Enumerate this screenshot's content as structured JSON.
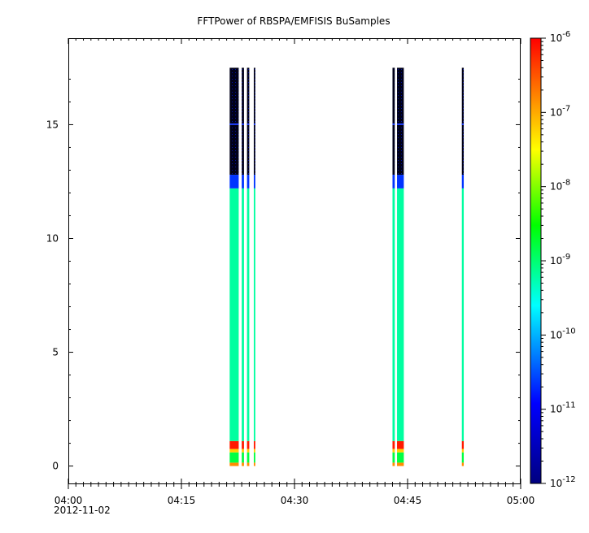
{
  "chart_data": {
    "type": "heatmap",
    "title": "FFTPower of RBSPA/EMFISIS  BuSamples",
    "xlabel": "",
    "ylabel": "",
    "x_axis": {
      "kind": "time",
      "range": [
        "04:00",
        "05:00"
      ],
      "tick_labels": [
        "04:00",
        "04:15",
        "04:30",
        "04:45",
        "05:00"
      ],
      "date_label": "2012-11-02"
    },
    "y_axis": {
      "range": [
        -0.8,
        18.8
      ],
      "tick_values": [
        0,
        5,
        10,
        15
      ],
      "tick_labels": [
        "0",
        "5",
        "10",
        "15"
      ]
    },
    "colorbar": {
      "scale": "log",
      "range": [
        1e-12,
        1e-06
      ],
      "tick_bases": [
        "10",
        "10",
        "10",
        "10",
        "10",
        "10",
        "10"
      ],
      "tick_exponents": [
        "-12",
        "-11",
        "-10",
        "-9",
        "-8",
        "-7",
        "-6"
      ],
      "colormap": [
        "#00007f",
        "#0000ff",
        "#00ffff",
        "#00ff00",
        "#ffff00",
        "#ff0000"
      ]
    },
    "burst_intervals_minutes": [
      [
        21.4,
        22.6
      ],
      [
        23.0,
        23.3
      ],
      [
        23.7,
        24.0
      ],
      [
        24.6,
        24.8
      ],
      [
        43.0,
        43.3
      ],
      [
        43.6,
        44.5
      ],
      [
        52.2,
        52.45
      ]
    ],
    "spectrum_profile": [
      {
        "y_range": [
          0,
          0.15
        ],
        "color": "#ff8c00"
      },
      {
        "y_range": [
          0.15,
          0.6
        ],
        "color": "#00ff44"
      },
      {
        "y_range": [
          0.6,
          0.75
        ],
        "color": "#ffd000"
      },
      {
        "y_range": [
          0.75,
          1.1
        ],
        "color": "#ff1a00"
      },
      {
        "y_range": [
          1.1,
          12.2
        ],
        "color": "#00ffa0"
      },
      {
        "y_range": [
          12.2,
          12.8
        ],
        "color": "#0033ff"
      },
      {
        "y_range": [
          12.8,
          17.5
        ],
        "color": "#000033"
      }
    ]
  }
}
